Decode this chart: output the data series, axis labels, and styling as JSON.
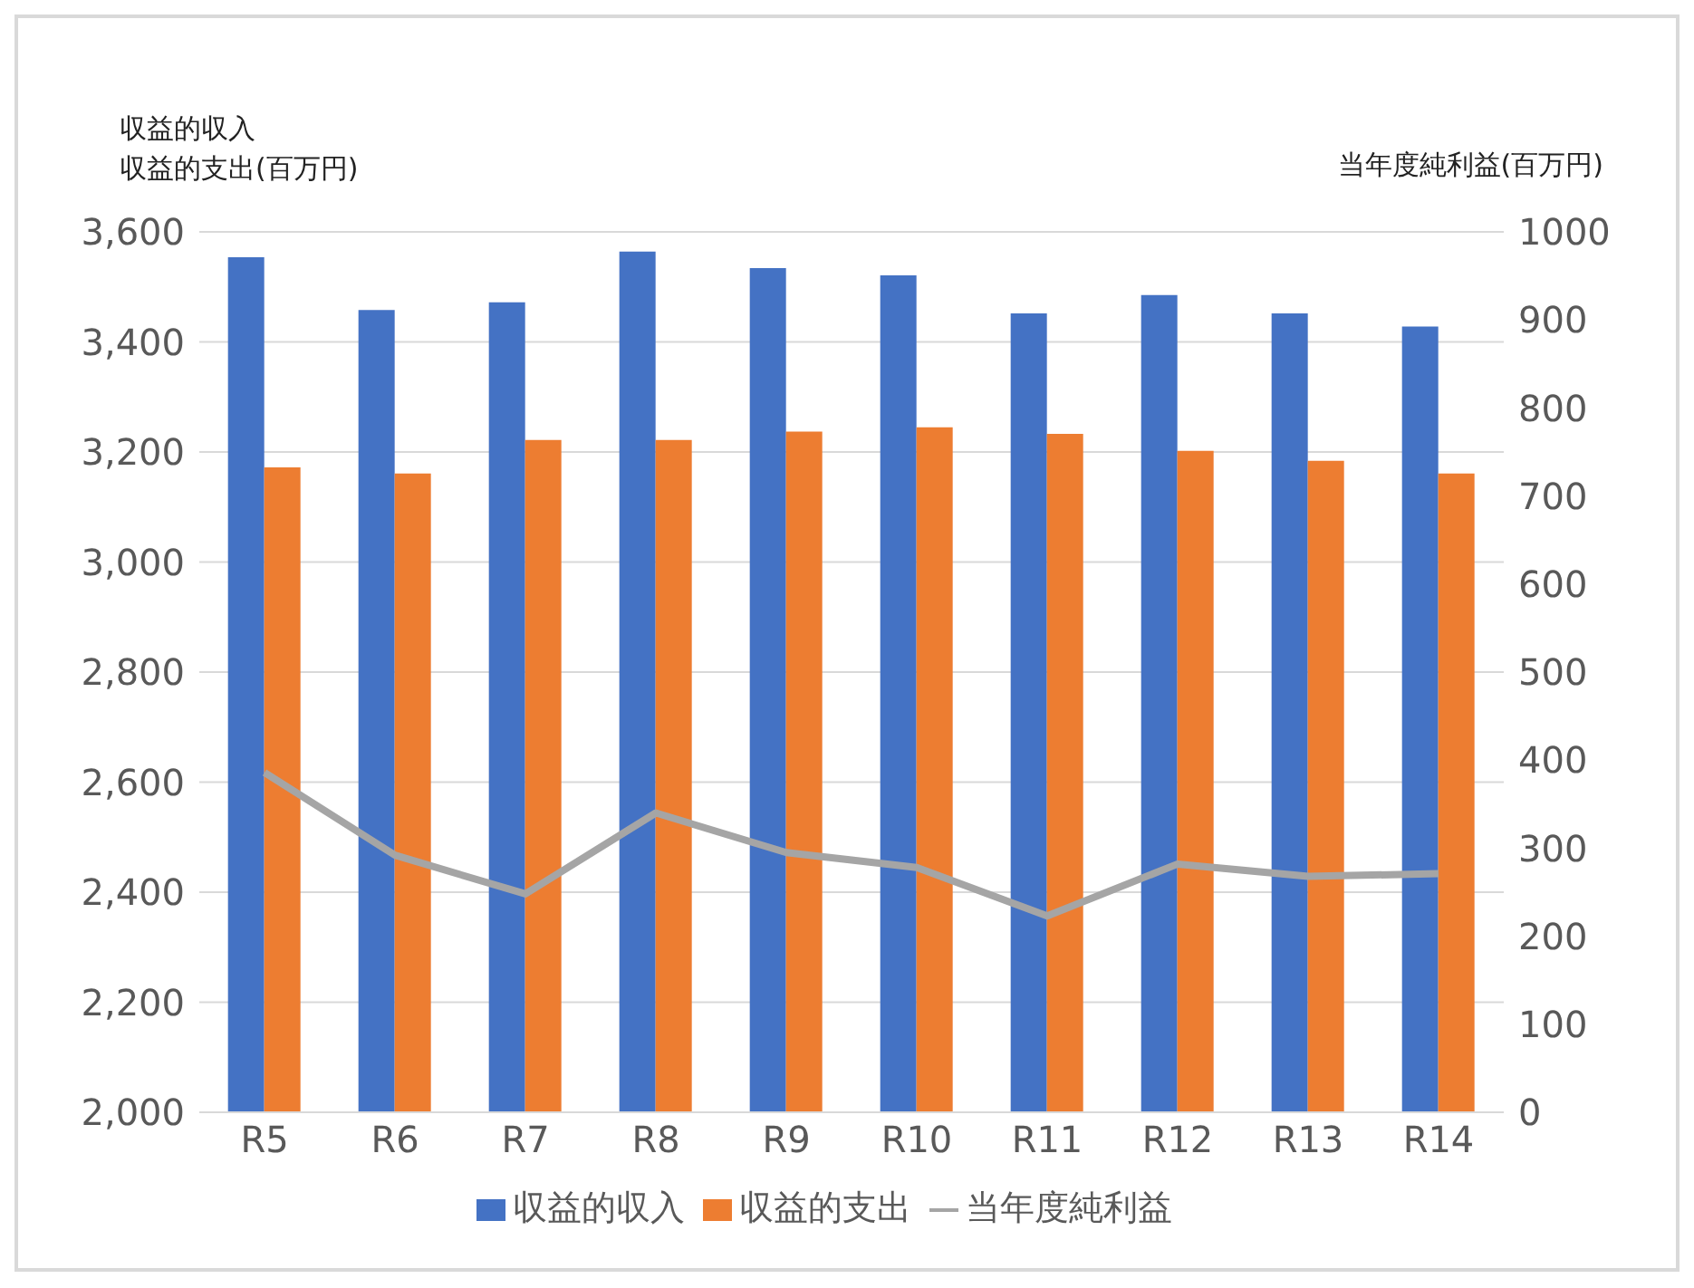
{
  "chart_data": {
    "type": "bar",
    "categories": [
      "R5",
      "R6",
      "R7",
      "R8",
      "R9",
      "R10",
      "R11",
      "R12",
      "R13",
      "R14"
    ],
    "ylabel": "収益的収入収益的支出(百万円)",
    "y2label": "当年度純利益(百万円)",
    "series": [
      {
        "name": "収益的収入",
        "color": "#4472c4",
        "values": [
          3554,
          3458,
          3472,
          3564,
          3534,
          3521,
          3452,
          3485,
          3452,
          3428
        ]
      },
      {
        "name": "収益的支出",
        "color": "#ed7d31",
        "values": [
          3172,
          3161,
          3222,
          3222,
          3237,
          3245,
          3233,
          3202,
          3184,
          3161
        ]
      },
      {
        "name": "当年度純利益",
        "type": "line",
        "axis": "y2",
        "color": "#a5a5a5",
        "values": [
          386,
          292,
          248,
          340,
          295,
          278,
          223,
          282,
          268,
          271
        ]
      }
    ],
    "ylim": [
      2000,
      3600
    ],
    "yticks": [
      {
        "value": 2000,
        "label": "2,000"
      },
      {
        "value": 2200,
        "label": "2,200"
      },
      {
        "value": 2400,
        "label": "2,400"
      },
      {
        "value": 2600,
        "label": "2,600"
      },
      {
        "value": 2800,
        "label": "2,800"
      },
      {
        "value": 3000,
        "label": "3,000"
      },
      {
        "value": 3200,
        "label": "3,200"
      },
      {
        "value": 3400,
        "label": "3,400"
      },
      {
        "value": 3600,
        "label": "3,600"
      }
    ],
    "y2lim": [
      0,
      1000
    ],
    "y2ticks": [
      0,
      100,
      200,
      300,
      400,
      500,
      600,
      700,
      800,
      900,
      1000
    ],
    "grid": "y",
    "legend": "bottom",
    "marker": "none",
    "line_style": "solid"
  }
}
